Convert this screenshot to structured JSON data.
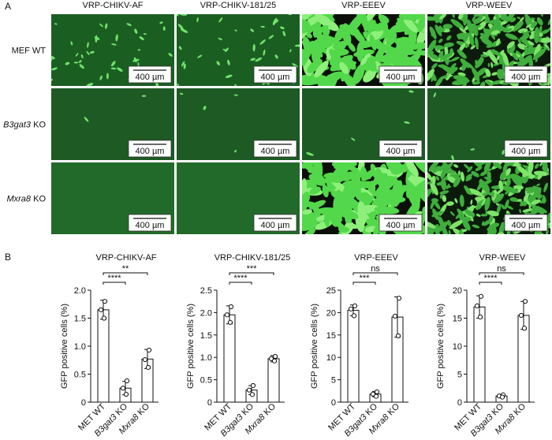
{
  "panel_a": {
    "label": "A",
    "columns": [
      "VRP-CHIKV-AF",
      "VRP-CHIKV-181/25",
      "VRP-EEEV",
      "VRP-WEEV"
    ],
    "rows": [
      "MEF WT",
      "B3gat3 KO",
      "Mxra8 KO"
    ],
    "scale_bar": "400 µm"
  },
  "panel_b_label": "B",
  "chart_data": [
    {
      "type": "bar",
      "title": "VRP-CHIKV-AF",
      "ylabel": "GFP positive cells (%)",
      "categories": [
        "MET WT",
        "B3gat3 KO",
        "Mxra8 KO"
      ],
      "values": [
        1.65,
        0.25,
        0.77
      ],
      "errors": [
        0.17,
        0.12,
        0.17
      ],
      "points": [
        [
          1.8,
          1.65,
          1.5
        ],
        [
          0.38,
          0.25,
          0.14
        ],
        [
          0.93,
          0.76,
          0.62
        ]
      ],
      "significance": [
        "****",
        "**"
      ],
      "ylim": [
        0,
        2.0
      ],
      "yticks": [
        0,
        0.5,
        {
          "value": 1.0,
          "label": "1.0"
        },
        1.5,
        {
          "value": 2.0,
          "label": "2.0"
        }
      ]
    },
    {
      "type": "bar",
      "title": "VRP-CHIKV-181/25",
      "ylabel": "GFP positive cells (%)",
      "categories": [
        "MET WT",
        "B3gat3 KO",
        "Mxra8 KO"
      ],
      "values": [
        1.95,
        0.27,
        0.97
      ],
      "errors": [
        0.2,
        0.1,
        0.07
      ],
      "points": [
        [
          2.13,
          1.95,
          1.78
        ],
        [
          0.37,
          0.27,
          0.17
        ],
        [
          1.02,
          0.97,
          0.92
        ]
      ],
      "significance": [
        "****",
        "***"
      ],
      "ylim": [
        0,
        2.5
      ],
      "yticks": [
        0,
        0.5,
        {
          "value": 1.0,
          "label": "1.0"
        },
        1.5,
        {
          "value": 2.0,
          "label": "2.0"
        },
        2.5
      ]
    },
    {
      "type": "bar",
      "title": "VRP-EEEV",
      "ylabel": "GFP positive cells (%)",
      "categories": [
        "MET WT",
        "B3gat3 KO",
        "Mxra8 KO"
      ],
      "values": [
        20.5,
        1.8,
        19.0
      ],
      "errors": [
        1.2,
        0.6,
        4.5
      ],
      "points": [
        [
          21.5,
          20.8,
          19.3
        ],
        [
          2.3,
          1.8,
          1.3
        ],
        [
          23.2,
          19.2,
          14.8
        ]
      ],
      "significance": [
        "***",
        "ns"
      ],
      "ylim": [
        0,
        25
      ],
      "yticks": [
        0,
        5,
        10,
        15,
        20,
        25
      ]
    },
    {
      "type": "bar",
      "title": "VRP-WEEV",
      "ylabel": "GFP positive cells (%)",
      "categories": [
        "MET WT",
        "B3gat3 KO",
        "Mxra8 KO"
      ],
      "values": [
        17.0,
        1.1,
        15.5
      ],
      "errors": [
        2.0,
        0.3,
        2.5
      ],
      "points": [
        [
          18.9,
          17.2,
          15.2
        ],
        [
          1.3,
          1.1,
          0.9
        ],
        [
          18.0,
          15.5,
          13.2
        ]
      ],
      "significance": [
        "****",
        "ns"
      ],
      "ylim": [
        0,
        20
      ],
      "yticks": [
        0,
        5,
        10,
        15,
        20
      ]
    }
  ]
}
